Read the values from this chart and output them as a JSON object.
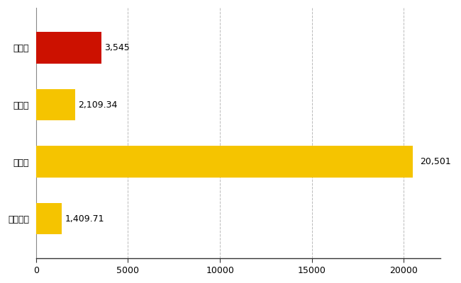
{
  "categories": [
    "中央区",
    "県平均",
    "県最大",
    "全国平均"
  ],
  "values": [
    3545,
    2109.34,
    20501,
    1409.71
  ],
  "labels": [
    "3,545",
    "2,109.34",
    "20,501",
    "1,409.71"
  ],
  "colors": [
    "#cc1100",
    "#f5c400",
    "#f5c400",
    "#f5c400"
  ],
  "xlim": [
    0,
    22000
  ],
  "xticks": [
    0,
    5000,
    10000,
    15000,
    20000
  ],
  "background_color": "#ffffff",
  "grid_color": "#bbbbbb",
  "bar_height": 0.55,
  "label_fontsize": 9,
  "tick_fontsize": 9
}
